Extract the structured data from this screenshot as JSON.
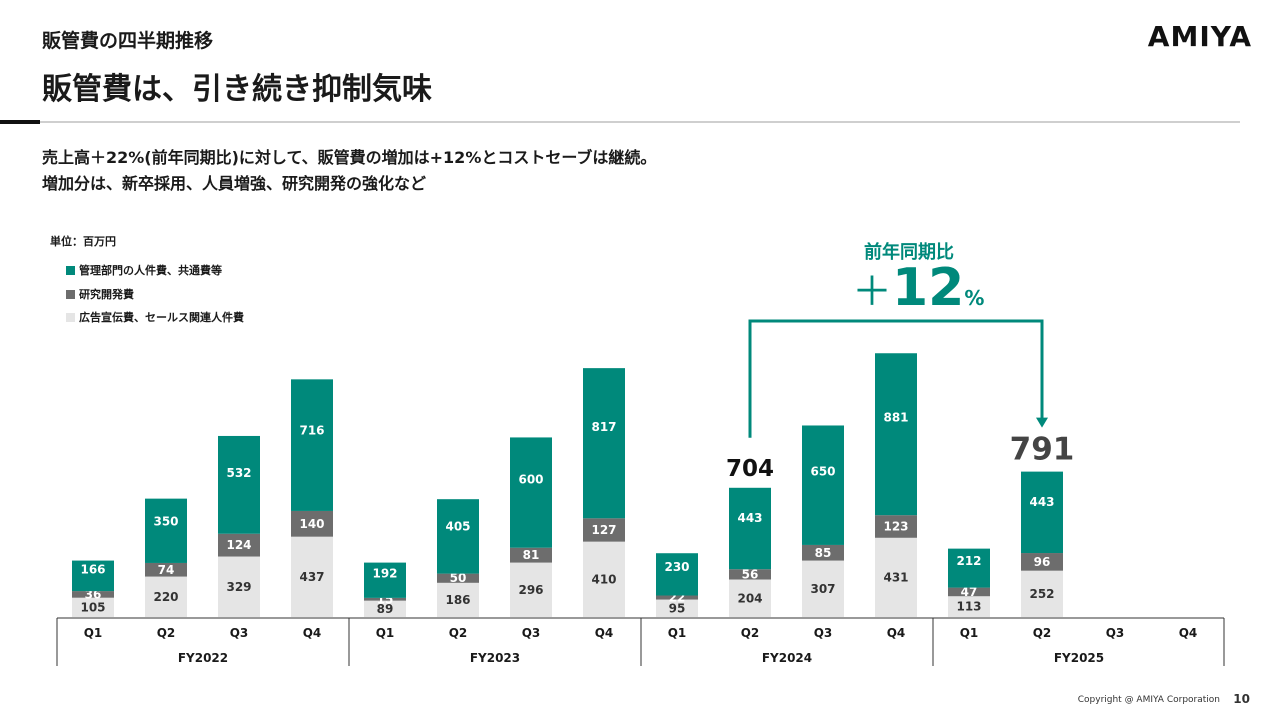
{
  "header": {
    "section_title": "販管費の四半期推移",
    "page_title": "販管費は、引き続き抑制気味",
    "logo_text": "AMIYA"
  },
  "lead": {
    "line1": "売上高＋22%(前年同期比)に対して、販管費の増加は+12%とコストセーブは継続。",
    "line2": "増加分は、新卒採用、人員増強、研究開発の強化など"
  },
  "unit_label": "単位：百万円",
  "colors": {
    "teal": "#00897b",
    "gray": "#6d6d6d",
    "light": "#e5e5e5",
    "rule": "#cfcfcf"
  },
  "callout": {
    "label": "前年同期比",
    "sign": "＋",
    "value": "12",
    "unit": "%"
  },
  "chart_data": {
    "type": "bar",
    "stacked": true,
    "categories": [
      "FY2022 Q1",
      "FY2022 Q2",
      "FY2022 Q3",
      "FY2022 Q4",
      "FY2023 Q1",
      "FY2023 Q2",
      "FY2023 Q3",
      "FY2023 Q4",
      "FY2024 Q1",
      "FY2024 Q2",
      "FY2024 Q3",
      "FY2024 Q4",
      "FY2025 Q1",
      "FY2025 Q2",
      "FY2025 Q3",
      "FY2025 Q4"
    ],
    "quarter_labels": [
      "Q1",
      "Q2",
      "Q3",
      "Q4",
      "Q1",
      "Q2",
      "Q3",
      "Q4",
      "Q1",
      "Q2",
      "Q3",
      "Q4",
      "Q1",
      "Q2",
      "Q3",
      "Q4"
    ],
    "fiscal_years": [
      "FY2022",
      "FY2023",
      "FY2024",
      "FY2025"
    ],
    "series": [
      {
        "name": "広告宣伝費、セールス関連人件費",
        "color": "#e5e5e5",
        "values": [
          105,
          220,
          329,
          437,
          89,
          186,
          296,
          410,
          95,
          204,
          307,
          431,
          113,
          252,
          null,
          null
        ]
      },
      {
        "name": "研究開発費",
        "color": "#6d6d6d",
        "values": [
          36,
          74,
          124,
          140,
          15,
          50,
          81,
          127,
          22,
          56,
          85,
          123,
          47,
          96,
          null,
          null
        ]
      },
      {
        "name": "管理部門の人件費、共通費等",
        "color": "#00897b",
        "values": [
          166,
          350,
          532,
          716,
          192,
          405,
          600,
          817,
          230,
          443,
          650,
          881,
          212,
          443,
          null,
          null
        ]
      }
    ],
    "legend_order": [
      "管理部門の人件費、共通費等",
      "研究開発費",
      "広告宣伝費、セールス関連人件費"
    ],
    "total_labels": [
      {
        "category": "FY2024 Q2",
        "value": "704"
      },
      {
        "category": "FY2025 Q2",
        "value": "791"
      }
    ],
    "comparison": {
      "from": "FY2024 Q2",
      "to": "FY2025 Q2",
      "label": "前年同期比",
      "value": "＋12%"
    },
    "ylim": [
      0,
      1450
    ]
  },
  "footer": {
    "copyright": "Copyright @ AMIYA Corporation",
    "page_number": "10"
  }
}
